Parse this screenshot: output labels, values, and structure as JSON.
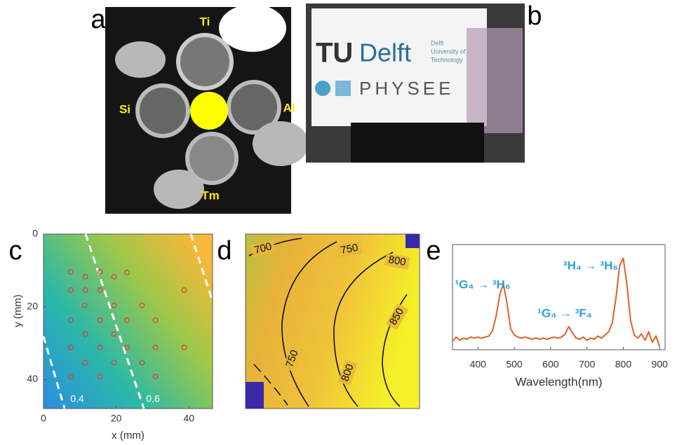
{
  "panels": {
    "a": {
      "label": "a",
      "sources": [
        "Ti",
        "Si",
        "Al",
        "Tm"
      ]
    },
    "b": {
      "label": "b",
      "logo_tu": "TU",
      "logo_delft": "Delft",
      "university": [
        "Delft",
        "University of",
        "Technology"
      ],
      "company": "PHYSEE"
    }
  },
  "chart_data": [
    {
      "type": "scatter",
      "label": "c",
      "xlabel": "x (mm)",
      "ylabel": "y (mm)",
      "xlim": [
        0,
        46.5
      ],
      "ylim": [
        0,
        48
      ],
      "xticks": [
        0,
        20,
        40
      ],
      "yticks": [
        0,
        20,
        40
      ],
      "y_inverted": true,
      "color": "#d9443c",
      "contour_levels": [
        0.4,
        0.6
      ],
      "x": [
        7.5,
        11.5,
        15.6,
        19.4,
        23,
        7.5,
        11.5,
        15.6,
        11.3,
        19.4,
        27.1,
        7.5,
        15.6,
        23,
        30.8,
        11.5,
        19.4,
        38.7,
        7.5,
        15.6,
        23,
        30.8,
        38.7,
        11.5,
        19.4,
        27.1,
        7.5,
        15.6,
        30.8
      ],
      "y": [
        10.4,
        11.7,
        10.4,
        11.7,
        10.6,
        15.4,
        15.4,
        15.4,
        19.6,
        19.6,
        19.6,
        23.7,
        23.7,
        23.7,
        23.7,
        27.5,
        27.5,
        15.4,
        31.2,
        31.2,
        31.2,
        31.2,
        31.2,
        35.4,
        35.4,
        35.4,
        39.2,
        39.2,
        39.2
      ]
    },
    {
      "type": "contour",
      "label": "d",
      "contour_labels": [
        700,
        750,
        800,
        850,
        750,
        800
      ]
    },
    {
      "type": "line",
      "label": "e",
      "xlabel": "Wavelength(nm)",
      "color": "#e0602a",
      "xlim": [
        330,
        915
      ],
      "xticks": [
        400,
        500,
        600,
        700,
        800,
        900
      ],
      "ylim": [
        0,
        100
      ],
      "annotations": [
        "¹G₄ → ³H₆",
        "¹G₄ → ³F₄",
        "³H₄ → ³H₆"
      ],
      "x": [
        330,
        340,
        350,
        360,
        370,
        380,
        390,
        400,
        410,
        420,
        430,
        440,
        450,
        460,
        470,
        480,
        490,
        500,
        510,
        520,
        530,
        540,
        550,
        560,
        570,
        580,
        590,
        600,
        610,
        620,
        630,
        640,
        650,
        660,
        670,
        680,
        690,
        700,
        710,
        720,
        730,
        740,
        750,
        760,
        770,
        780,
        790,
        800,
        810,
        820,
        830,
        840,
        850,
        860,
        870,
        880,
        890,
        900
      ],
      "values": [
        8,
        12,
        9,
        11,
        10,
        12,
        11,
        12,
        11,
        12,
        13,
        18,
        32,
        52,
        63,
        44,
        20,
        14,
        12,
        11,
        12,
        11,
        10,
        11,
        10,
        11,
        10,
        11,
        12,
        11,
        12,
        15,
        22,
        16,
        11,
        10,
        12,
        9,
        11,
        10,
        13,
        11,
        14,
        17,
        26,
        50,
        80,
        87,
        62,
        28,
        14,
        11,
        15,
        9,
        17,
        7,
        13,
        3
      ]
    }
  ]
}
